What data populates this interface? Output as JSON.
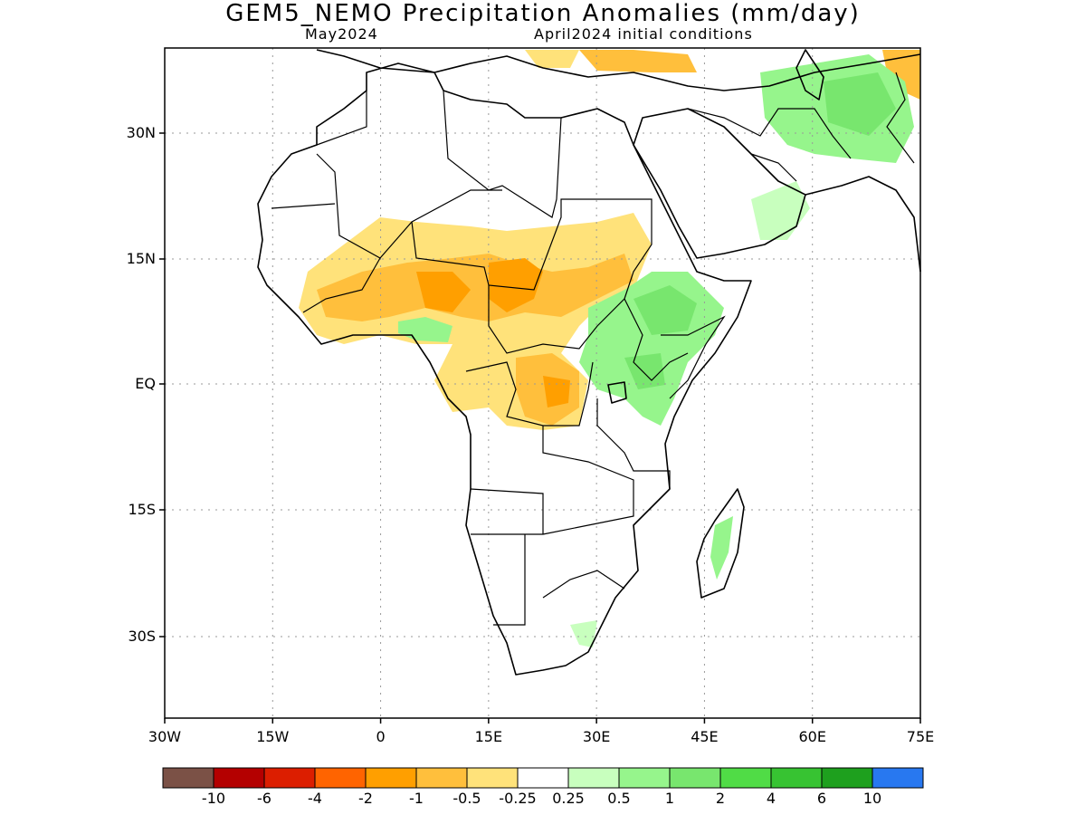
{
  "title": "GEM5_NEMO Precipitation Anomalies (mm/day)",
  "subtitle_left": "May2024",
  "subtitle_right": "April2024 initial conditions",
  "lat_labels": [
    "30N",
    "15N",
    "EQ",
    "15S",
    "30S"
  ],
  "lon_labels": [
    "30W",
    "15W",
    "0",
    "15E",
    "30E",
    "45E",
    "60E",
    "75E"
  ],
  "colorbar": {
    "colors": [
      "#7b5146",
      "#b40000",
      "#dc1e00",
      "#ff6400",
      "#ff9f00",
      "#ffbf3c",
      "#ffe27a",
      "#ffffff",
      "#c8ffbe",
      "#96f58c",
      "#78e66e",
      "#50dc46",
      "#37c332",
      "#1ea01e",
      "#2878f0"
    ],
    "labels": [
      "-10",
      "-6",
      "-4",
      "-2",
      "-1",
      "-0.5",
      "-0.25",
      "0.25",
      "0.5",
      "1",
      "2",
      "4",
      "6",
      "10"
    ]
  },
  "colors": {
    "dry_light": "#ffe27a",
    "dry_mid": "#ffbf3c",
    "dry_strong": "#ff9f00",
    "wet_light": "#c8ffbe",
    "wet_mid": "#96f58c",
    "wet_strong": "#78e66e"
  }
}
